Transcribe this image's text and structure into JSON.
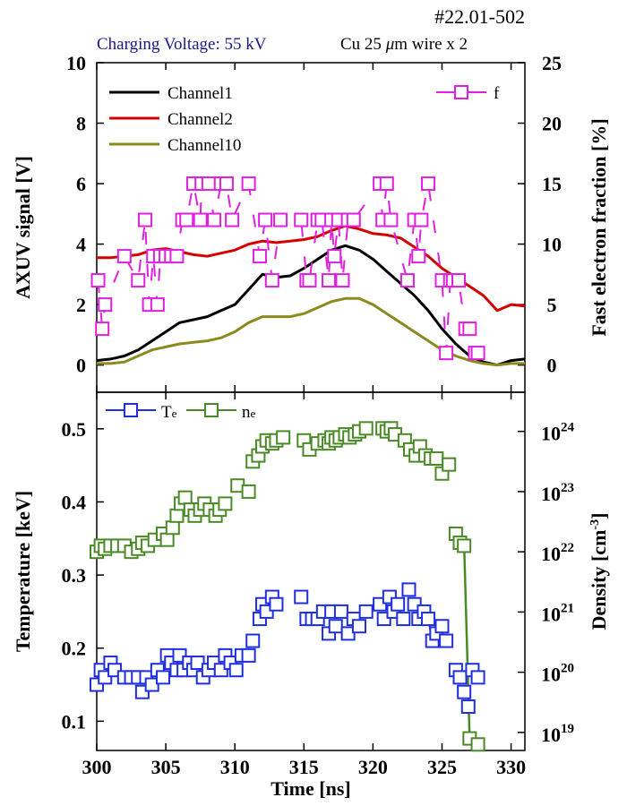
{
  "header": {
    "shot_id": "#22.01-502",
    "voltage_label": "Charging Voltage: 55 kV",
    "wire_label_prefix": "Cu 25 ",
    "wire_label_mu": "μ",
    "wire_label_suffix": "m wire x 2"
  },
  "colors": {
    "channel1": "#000000",
    "channel2": "#d40000",
    "channel10": "#8a8a1e",
    "f": "#e020e0",
    "te": "#1f2fe0",
    "ne": "#4a8a26",
    "voltage_text": "#1a1a8c"
  },
  "chart_data": [
    {
      "type": "line",
      "panel": "top",
      "ylabel": "AXUV signal [V]",
      "ylabel_right": "Fast electron fraction [%]",
      "xlim": [
        300,
        331
      ],
      "ylim": [
        -0.9,
        10
      ],
      "yticks": [
        0,
        2,
        4,
        6,
        8,
        10
      ],
      "ylim_right": [
        -2.25,
        25
      ],
      "yticks_right": [
        0,
        5,
        10,
        15,
        20,
        25
      ],
      "legend_position": "top-left",
      "series": [
        {
          "name": "Channel1",
          "key": "channel1",
          "x": [
            300,
            301,
            302,
            303,
            304,
            305,
            306,
            307,
            308,
            309,
            310,
            311,
            312,
            313,
            314,
            315,
            316,
            317,
            318,
            319,
            320,
            321,
            322,
            323,
            324,
            325,
            326,
            327,
            328,
            329,
            330,
            331
          ],
          "y": [
            0.15,
            0.2,
            0.3,
            0.5,
            0.8,
            1.1,
            1.4,
            1.5,
            1.6,
            1.8,
            2.0,
            2.5,
            3.0,
            2.9,
            2.95,
            3.2,
            3.5,
            3.8,
            3.95,
            3.8,
            3.5,
            3.1,
            2.7,
            2.3,
            1.8,
            1.2,
            0.7,
            0.3,
            0.1,
            0.0,
            0.15,
            0.2
          ]
        },
        {
          "name": "Channel2",
          "key": "channel2",
          "x": [
            300,
            301,
            302,
            303,
            304,
            305,
            306,
            307,
            308,
            309,
            310,
            311,
            312,
            313,
            314,
            315,
            316,
            317,
            318,
            319,
            320,
            321,
            322,
            323,
            324,
            325,
            326,
            327,
            328,
            329,
            330,
            331
          ],
          "y": [
            3.55,
            3.55,
            3.6,
            3.65,
            3.8,
            3.85,
            3.75,
            3.65,
            3.6,
            3.7,
            3.8,
            4.0,
            4.1,
            4.05,
            4.1,
            4.15,
            4.25,
            4.45,
            4.6,
            4.5,
            4.35,
            4.3,
            4.2,
            3.9,
            3.6,
            3.2,
            2.9,
            2.6,
            2.3,
            1.8,
            2.0,
            1.95
          ]
        },
        {
          "name": "Channel10",
          "key": "channel10",
          "x": [
            300,
            301,
            302,
            303,
            304,
            305,
            306,
            307,
            308,
            309,
            310,
            311,
            312,
            313,
            314,
            315,
            316,
            317,
            318,
            319,
            320,
            321,
            322,
            323,
            324,
            325,
            326,
            327,
            328,
            329,
            330,
            331
          ],
          "y": [
            0.05,
            0.05,
            0.1,
            0.3,
            0.5,
            0.6,
            0.7,
            0.75,
            0.8,
            0.9,
            1.1,
            1.4,
            1.6,
            1.6,
            1.6,
            1.7,
            1.9,
            2.1,
            2.2,
            2.2,
            2.0,
            1.7,
            1.4,
            1.1,
            0.8,
            0.5,
            0.3,
            0.15,
            0.05,
            0.0,
            0.05,
            0.05
          ]
        },
        {
          "name": "f",
          "key": "f",
          "axis": "right",
          "x": [
            300.1,
            300.4,
            300.6,
            302.0,
            303.0,
            303.5,
            303.8,
            304.1,
            304.4,
            304.6,
            305.0,
            305.4,
            305.8,
            306.2,
            306.5,
            307.0,
            307.5,
            307.6,
            308.1,
            308.5,
            309.0,
            309.4,
            309.8,
            311.0,
            311.8,
            312.2,
            312.7,
            313.3,
            314.8,
            315.2,
            315.4,
            316.0,
            316.3,
            316.8,
            317.0,
            317.2,
            317.5,
            317.8,
            318.2,
            318.6,
            320.5,
            320.7,
            321.0,
            321.3,
            322.5,
            323.0,
            323.3,
            323.5,
            324.0,
            325.0,
            325.3,
            325.6,
            325.8,
            326.2,
            326.7,
            327.0,
            327.4,
            327.6
          ],
          "y": [
            7,
            3,
            5,
            9,
            7,
            12,
            5,
            9,
            5,
            9,
            9,
            9,
            9,
            12,
            12,
            15,
            12,
            15,
            15,
            12,
            15,
            15,
            12,
            15,
            9,
            12,
            7,
            12,
            12,
            7,
            7,
            12,
            12,
            7,
            12,
            9,
            12,
            7,
            12,
            12,
            15,
            12,
            15,
            12,
            7,
            12,
            9,
            12,
            15,
            7,
            1,
            7,
            7,
            7,
            3,
            3,
            1,
            1
          ]
        }
      ]
    },
    {
      "type": "scatter",
      "panel": "bottom",
      "xlabel": "Time [ns]",
      "ylabel": "Temperature [keV]",
      "ylabel_right": "Density [cm",
      "ylabel_right_exp": "-3",
      "xlim": [
        300,
        331
      ],
      "xticks": [
        300,
        305,
        310,
        315,
        320,
        325,
        330
      ],
      "ylim": [
        0.06,
        0.55
      ],
      "yticks": [
        0.1,
        0.2,
        0.3,
        0.4,
        0.5
      ],
      "ylim_right_log10": [
        18.7,
        24.65
      ],
      "yticks_right_log10": [
        19,
        20,
        21,
        22,
        23,
        24
      ],
      "legend_position": "top-left",
      "series": [
        {
          "name": "Te",
          "key": "te",
          "x": [
            300.0,
            300.3,
            300.6,
            301.0,
            301.3,
            302.0,
            302.5,
            303.0,
            303.3,
            303.6,
            304.0,
            304.4,
            304.8,
            305.1,
            305.4,
            305.8,
            306.0,
            306.3,
            306.7,
            307.0,
            307.3,
            307.7,
            308.1,
            308.5,
            309.0,
            309.3,
            309.7,
            310.1,
            310.5,
            311.0,
            311.3,
            311.8,
            312.0,
            312.3,
            312.7,
            313.0,
            314.8,
            315.2,
            315.6,
            316.0,
            316.4,
            316.8,
            317.0,
            317.3,
            317.7,
            318.2,
            318.6,
            319.0,
            319.5,
            320.5,
            320.8,
            321.2,
            321.5,
            321.8,
            322.2,
            322.6,
            323.0,
            323.3,
            323.7,
            324.0,
            324.3,
            324.6,
            325.0,
            325.3,
            326.0,
            326.3,
            326.6,
            326.9,
            327.2,
            327.6
          ],
          "y": [
            0.15,
            0.17,
            0.16,
            0.18,
            0.17,
            0.16,
            0.16,
            0.16,
            0.14,
            0.16,
            0.15,
            0.17,
            0.16,
            0.19,
            0.18,
            0.17,
            0.19,
            0.17,
            0.18,
            0.17,
            0.18,
            0.16,
            0.17,
            0.18,
            0.17,
            0.19,
            0.18,
            0.17,
            0.19,
            0.19,
            0.21,
            0.24,
            0.26,
            0.25,
            0.27,
            0.26,
            0.27,
            0.24,
            0.24,
            0.24,
            0.25,
            0.22,
            0.25,
            0.23,
            0.25,
            0.22,
            0.24,
            0.23,
            0.25,
            0.26,
            0.24,
            0.27,
            0.25,
            0.26,
            0.24,
            0.28,
            0.26,
            0.24,
            0.25,
            0.24,
            0.21,
            0.22,
            0.23,
            0.21,
            0.17,
            0.16,
            0.14,
            0.12,
            0.17,
            0.16
          ]
        },
        {
          "name": "ne",
          "key": "ne",
          "connect_segment": [
            326.8,
            327.2
          ],
          "x": [
            300.0,
            300.3,
            300.6,
            301.0,
            301.5,
            302.0,
            302.5,
            303.0,
            303.3,
            303.7,
            304.2,
            304.8,
            305.1,
            305.5,
            305.8,
            306.1,
            306.4,
            306.8,
            307.1,
            307.5,
            307.8,
            308.2,
            308.6,
            308.9,
            309.3,
            310.2,
            311.0,
            311.3,
            311.7,
            312.0,
            312.3,
            312.7,
            313.0,
            313.5,
            315.0,
            315.4,
            316.0,
            316.5,
            316.8,
            317.0,
            317.3,
            317.6,
            318.0,
            318.3,
            318.7,
            319.0,
            319.5,
            320.7,
            321.0,
            321.3,
            321.6,
            322.3,
            322.7,
            323.1,
            323.4,
            323.8,
            324.2,
            324.6,
            325.0,
            325.5,
            326.0,
            326.3,
            326.6,
            327.0,
            327.6
          ],
          "y_log10": [
            22.0,
            22.1,
            22.05,
            22.1,
            22.1,
            22.1,
            22.0,
            22.05,
            22.15,
            22.1,
            22.2,
            22.3,
            22.2,
            22.4,
            22.6,
            22.8,
            22.9,
            22.7,
            22.6,
            22.7,
            22.8,
            22.7,
            22.6,
            22.7,
            22.8,
            23.1,
            23.0,
            23.5,
            23.6,
            23.75,
            23.85,
            23.8,
            23.85,
            23.9,
            23.85,
            23.7,
            23.8,
            23.85,
            23.8,
            23.9,
            23.85,
            23.9,
            23.95,
            23.9,
            23.95,
            24.0,
            24.05,
            24.05,
            24.0,
            24.05,
            23.95,
            23.85,
            23.7,
            23.6,
            23.75,
            23.6,
            23.55,
            23.55,
            23.3,
            23.45,
            22.3,
            22.15,
            22.1,
            18.9,
            18.8
          ]
        }
      ]
    }
  ]
}
